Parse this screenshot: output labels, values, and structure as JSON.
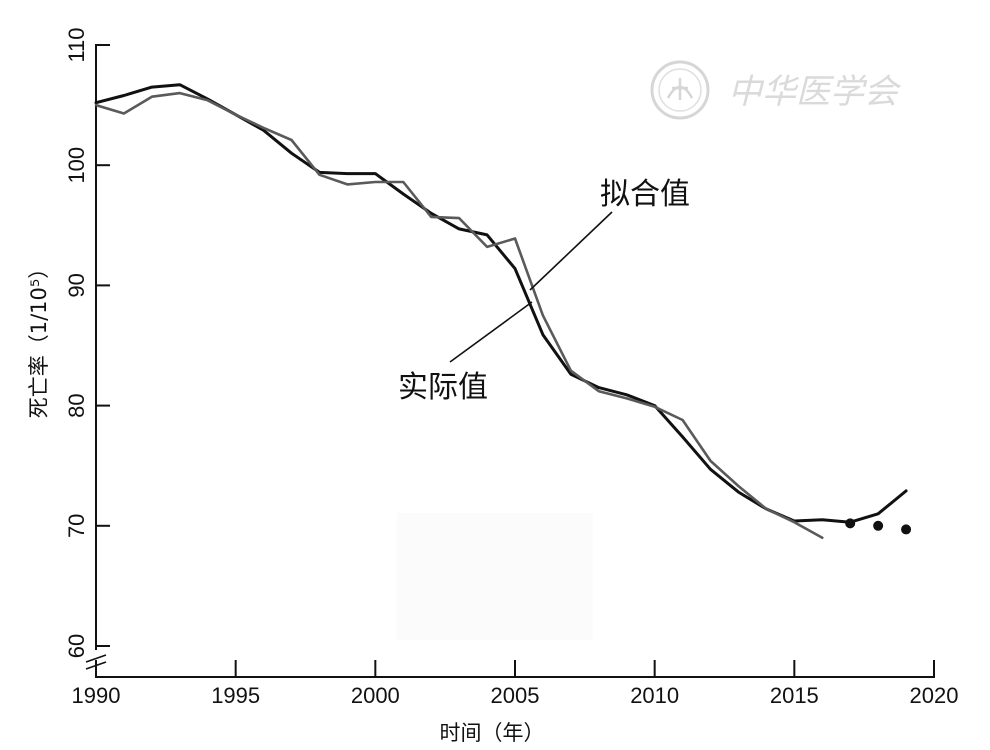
{
  "chart_data": {
    "type": "line",
    "xlabel": "时间（年）",
    "ylabel": "死亡率（1/10⁵）",
    "xlim": [
      1990,
      2020
    ],
    "ylim": [
      60,
      110
    ],
    "xticks": [
      "1990",
      "1995",
      "2000",
      "2005",
      "2010",
      "2015",
      "2020"
    ],
    "yticks": [
      "60",
      "70",
      "80",
      "90",
      "100",
      "110"
    ],
    "grid": false,
    "axis_break_y": true,
    "annotations": [
      {
        "text": "拟合值",
        "target_series": "fitted"
      },
      {
        "text": "实际值",
        "target_series": "actual"
      }
    ],
    "series": [
      {
        "key": "actual",
        "color": "#111111",
        "style": "line",
        "x": [
          1990,
          1991,
          1992,
          1993,
          1994,
          1995,
          1996,
          1997,
          1998,
          1999,
          2000,
          2001,
          2002,
          2003,
          2004,
          2005,
          2006,
          2007,
          2008,
          2009,
          2010,
          2011,
          2012,
          2013,
          2014,
          2015,
          2016,
          2017,
          2018,
          2019
        ],
        "values": [
          105.2,
          105.8,
          106.5,
          106.7,
          105.5,
          104.2,
          102.9,
          101.0,
          99.4,
          99.3,
          99.3,
          97.6,
          96.0,
          94.7,
          94.2,
          91.4,
          85.9,
          82.6,
          81.5,
          80.9,
          80.0,
          77.4,
          74.7,
          72.8,
          71.4,
          70.4,
          70.5,
          70.3,
          71.0,
          72.9
        ]
      },
      {
        "key": "fitted",
        "color": "#5a5a5a",
        "style": "line",
        "x": [
          1990,
          1991,
          1992,
          1993,
          1994,
          1995,
          1996,
          1997,
          1998,
          1999,
          2000,
          2001,
          2002,
          2003,
          2004,
          2005,
          2006,
          2007,
          2008,
          2009,
          2010,
          2011,
          2012,
          2013,
          2014,
          2015,
          2016
        ],
        "values": [
          105.0,
          104.3,
          105.7,
          106.0,
          105.4,
          104.2,
          103.1,
          102.1,
          99.2,
          98.4,
          98.6,
          98.6,
          95.7,
          95.6,
          93.2,
          93.9,
          87.5,
          82.9,
          81.2,
          80.6,
          79.9,
          78.8,
          75.4,
          73.3,
          71.4,
          70.3,
          69.0
        ]
      },
      {
        "key": "points",
        "color": "#111111",
        "style": "points",
        "x": [
          2017,
          2018,
          2019
        ],
        "values": [
          70.2,
          70.0,
          69.7
        ]
      }
    ]
  },
  "watermark": {
    "text": "中华医学会"
  }
}
